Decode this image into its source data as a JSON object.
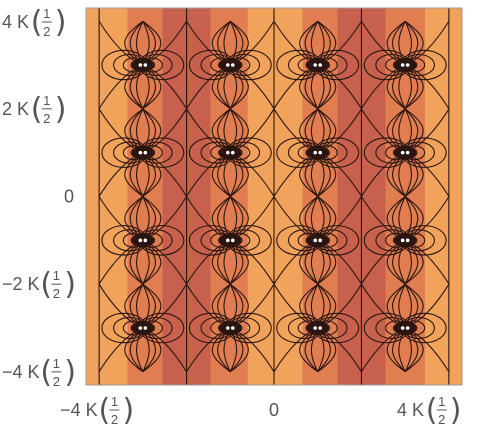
{
  "chart_data": {
    "type": "heatmap",
    "subtype": "contour",
    "title": "",
    "xlabel": "",
    "ylabel": "",
    "x_tick_labels": [
      {
        "value": -4,
        "prefix": "−4 K",
        "fraction": [
          "1",
          "2"
        ]
      },
      {
        "value": 0,
        "prefix": "0",
        "fraction": null
      },
      {
        "value": 4,
        "prefix": "4 K",
        "fraction": [
          "1",
          "2"
        ]
      }
    ],
    "y_tick_labels": [
      {
        "value": 4,
        "prefix": "4 K",
        "fraction": [
          "1",
          "2"
        ]
      },
      {
        "value": 2,
        "prefix": "2 K",
        "fraction": [
          "1",
          "2"
        ]
      },
      {
        "value": 0,
        "prefix": "0",
        "fraction": null
      },
      {
        "value": -2,
        "prefix": "−2 K",
        "fraction": [
          "1",
          "2"
        ]
      },
      {
        "value": -4,
        "prefix": "−4 K",
        "fraction": [
          "1",
          "2"
        ]
      }
    ],
    "xlim": [
      -4.3,
      4.3
    ],
    "ylim": [
      -4.3,
      4.3
    ],
    "singularities_x": [
      -3,
      -1,
      1,
      3
    ],
    "singularities_y": [
      -3,
      -1,
      1,
      3
    ],
    "colors": {
      "dark_band": "#c8604e",
      "mid_band": "#e07e52",
      "light_band": "#f1a35c",
      "contour": "#2a1510",
      "pole": "#ffffff",
      "axis_text": "#555555"
    }
  }
}
